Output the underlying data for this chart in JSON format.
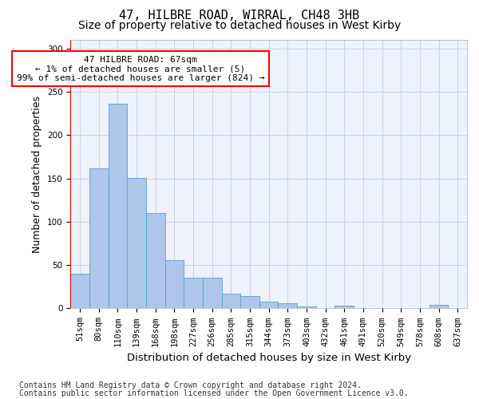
{
  "title": "47, HILBRE ROAD, WIRRAL, CH48 3HB",
  "subtitle": "Size of property relative to detached houses in West Kirby",
  "xlabel": "Distribution of detached houses by size in West Kirby",
  "ylabel": "Number of detached properties",
  "categories": [
    "51sqm",
    "80sqm",
    "110sqm",
    "139sqm",
    "168sqm",
    "198sqm",
    "227sqm",
    "256sqm",
    "285sqm",
    "315sqm",
    "344sqm",
    "373sqm",
    "403sqm",
    "432sqm",
    "461sqm",
    "491sqm",
    "520sqm",
    "549sqm",
    "578sqm",
    "608sqm",
    "637sqm"
  ],
  "values": [
    40,
    162,
    236,
    151,
    110,
    56,
    35,
    35,
    17,
    14,
    8,
    6,
    2,
    0,
    3,
    0,
    0,
    0,
    0,
    4,
    0
  ],
  "bar_color": "#aec6e8",
  "bar_edge_color": "#5a9fd4",
  "highlight_line_color": "#cc0000",
  "annotation_text_line1": "47 HILBRE ROAD: 67sqm",
  "annotation_text_line2": "← 1% of detached houses are smaller (5)",
  "annotation_text_line3": "99% of semi-detached houses are larger (824) →",
  "ylim": [
    0,
    310
  ],
  "yticks": [
    0,
    50,
    100,
    150,
    200,
    250,
    300
  ],
  "footer_line1": "Contains HM Land Registry data © Crown copyright and database right 2024.",
  "footer_line2": "Contains public sector information licensed under the Open Government Licence v3.0.",
  "bg_color": "#eef2fb",
  "grid_color": "#c8d4e8",
  "title_fontsize": 11,
  "subtitle_fontsize": 10,
  "axis_label_fontsize": 9,
  "tick_fontsize": 7.5,
  "annotation_fontsize": 8,
  "footer_fontsize": 7
}
